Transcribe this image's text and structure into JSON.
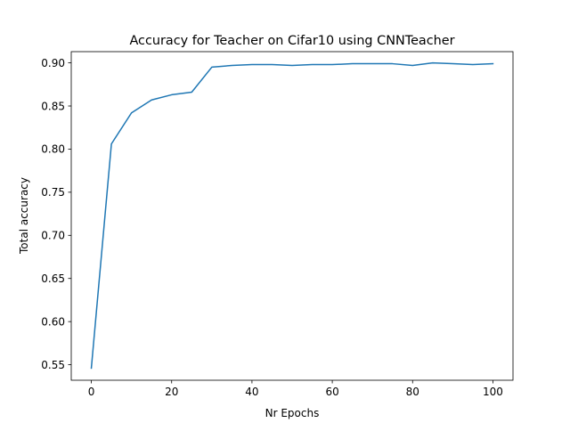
{
  "chart_data": {
    "type": "line",
    "title": "Accuracy for Teacher on Cifar10 using CNNTeacher",
    "xlabel": "Nr Epochs",
    "ylabel": "Total accuracy",
    "xlim": [
      -5,
      105
    ],
    "ylim": [
      0.532,
      0.913
    ],
    "xticks": [
      0,
      20,
      40,
      60,
      80,
      100
    ],
    "yticks": [
      0.55,
      0.6,
      0.65,
      0.7,
      0.75,
      0.8,
      0.85,
      0.9
    ],
    "xtick_labels": [
      "0",
      "20",
      "40",
      "60",
      "80",
      "100"
    ],
    "ytick_labels": [
      "0.55",
      "0.60",
      "0.65",
      "0.70",
      "0.75",
      "0.80",
      "0.85",
      "0.90"
    ],
    "grid": false,
    "series": [
      {
        "color": "#1f77b4",
        "x": [
          0,
          5,
          10,
          15,
          20,
          25,
          30,
          35,
          40,
          45,
          50,
          55,
          60,
          65,
          70,
          75,
          80,
          85,
          90,
          95,
          100
        ],
        "y": [
          0.546,
          0.806,
          0.842,
          0.857,
          0.863,
          0.866,
          0.895,
          0.897,
          0.898,
          0.898,
          0.897,
          0.898,
          0.898,
          0.899,
          0.899,
          0.899,
          0.897,
          0.9,
          0.899,
          0.898,
          0.899
        ]
      }
    ]
  }
}
